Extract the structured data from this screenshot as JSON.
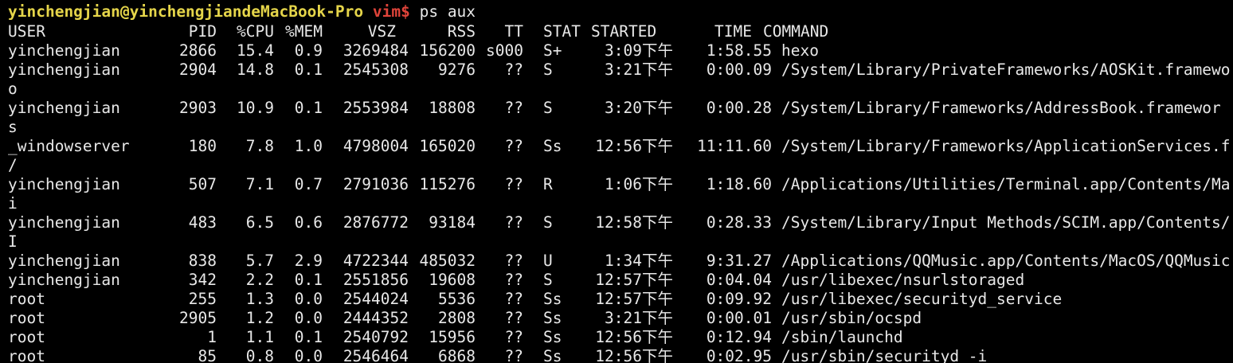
{
  "prompt": {
    "user_host": "yinchengjian@yinchengjiandeMacBook-Pro",
    "dir": "vim$",
    "command": "ps aux"
  },
  "table": {
    "header": [
      "USER",
      "PID",
      "%CPU",
      "%MEM",
      "VSZ",
      "RSS",
      "TT",
      "STAT",
      "STARTED",
      "TIME",
      "COMMAND"
    ],
    "rows": [
      {
        "cells": [
          "yinchengjian",
          "2866",
          "15.4",
          "0.9",
          "3269484",
          "156200",
          "s000",
          "S+",
          "3:09下午",
          "1:58.55",
          "hexo"
        ]
      },
      {
        "cells": [
          "yinchengjian",
          "2904",
          "14.8",
          "0.1",
          "2545308",
          "9276",
          "??",
          "S",
          "3:21下午",
          "0:00.09",
          "/System/Library/PrivateFrameworks/AOSKit.framewo"
        ],
        "wrap": "o"
      },
      {
        "cells": [
          "yinchengjian",
          "2903",
          "10.9",
          "0.1",
          "2553984",
          "18808",
          "??",
          "S",
          "3:20下午",
          "0:00.28",
          "/System/Library/Frameworks/AddressBook.framewor"
        ],
        "wrap": "s"
      },
      {
        "cells": [
          "_windowserver",
          "180",
          "7.8",
          "1.0",
          "4798004",
          "165020",
          "??",
          "Ss",
          "12:56下午",
          "11:11.60",
          "/System/Library/Frameworks/ApplicationServices.f"
        ],
        "wrap": "/"
      },
      {
        "cells": [
          "yinchengjian",
          "507",
          "7.1",
          "0.7",
          "2791036",
          "115276",
          "??",
          "R",
          "1:06下午",
          "1:18.60",
          "/Applications/Utilities/Terminal.app/Contents/Ma"
        ],
        "wrap": "i"
      },
      {
        "cells": [
          "yinchengjian",
          "483",
          "6.5",
          "0.6",
          "2876772",
          "93184",
          "??",
          "S",
          "12:58下午",
          "0:28.33",
          "/System/Library/Input Methods/SCIM.app/Contents/"
        ],
        "wrap": "I"
      },
      {
        "cells": [
          "yinchengjian",
          "838",
          "5.7",
          "2.9",
          "4722344",
          "485032",
          "??",
          "U",
          "1:34下午",
          "9:31.27",
          "/Applications/QQMusic.app/Contents/MacOS/QQMusic"
        ]
      },
      {
        "cells": [
          "yinchengjian",
          "342",
          "2.2",
          "0.1",
          "2551856",
          "19608",
          "??",
          "S",
          "12:57下午",
          "0:04.04",
          "/usr/libexec/nsurlstoraged"
        ]
      },
      {
        "cells": [
          "root",
          "255",
          "1.3",
          "0.0",
          "2544024",
          "5536",
          "??",
          "Ss",
          "12:57下午",
          "0:09.92",
          "/usr/libexec/securityd_service"
        ]
      },
      {
        "cells": [
          "root",
          "2905",
          "1.2",
          "0.0",
          "2444352",
          "2808",
          "??",
          "Ss",
          "3:21下午",
          "0:00.01",
          "/usr/sbin/ocspd"
        ]
      },
      {
        "cells": [
          "root",
          "1",
          "1.1",
          "0.1",
          "2540792",
          "15956",
          "??",
          "Ss",
          "12:56下午",
          "0:12.94",
          "/sbin/launchd"
        ]
      },
      {
        "cells": [
          "root",
          "85",
          "0.8",
          "0.0",
          "2546464",
          "6868",
          "??",
          "Ss",
          "12:56下午",
          "0:02.95",
          "/usr/sbin/securityd -i"
        ]
      }
    ]
  }
}
